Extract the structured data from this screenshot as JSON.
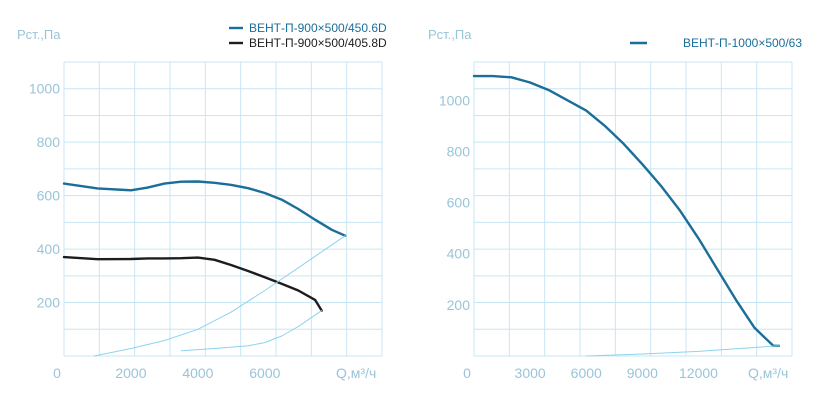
{
  "chart_data": [
    {
      "type": "line",
      "ylabel": "Pст.,Па",
      "xlabel": "Q,м³/ч",
      "xlim": [
        0,
        9500
      ],
      "ylim": [
        0,
        1100
      ],
      "x_ticks": [
        "0",
        "2000",
        "4000",
        "6000"
      ],
      "x_tick_values": [
        0,
        2000,
        4000,
        6000
      ],
      "y_ticks": [
        "200",
        "400",
        "600",
        "800",
        "1000"
      ],
      "y_tick_values": [
        200,
        400,
        600,
        800,
        1000
      ],
      "grid": true,
      "legend_position": "top-right",
      "series": [
        {
          "name": "ВЕНТ-П-900×500/450.6D",
          "color": "#1b6e98",
          "x": [
            0,
            1000,
            2000,
            2500,
            3000,
            3500,
            4000,
            4500,
            5000,
            5500,
            6000,
            6500,
            7000,
            7500,
            8000,
            8400
          ],
          "y": [
            645,
            627,
            620,
            630,
            645,
            652,
            653,
            648,
            640,
            628,
            610,
            585,
            550,
            510,
            472,
            450
          ]
        },
        {
          "name": "ВЕНТ-П-900×500/405.8D",
          "color": "#1d1d1d",
          "x": [
            0,
            1000,
            2000,
            2500,
            3000,
            3500,
            4000,
            4500,
            5000,
            5500,
            6000,
            6500,
            7000,
            7500,
            7700
          ],
          "y": [
            370,
            362,
            363,
            365,
            365,
            366,
            368,
            360,
            340,
            318,
            295,
            270,
            245,
            210,
            170
          ]
        },
        {
          "name": "",
          "color": "#8ed3ee",
          "x": [
            900,
            2000,
            3000,
            4000,
            5000,
            6000,
            7000,
            7700,
            8400
          ],
          "y": [
            0,
            28,
            58,
            100,
            165,
            245,
            330,
            390,
            450
          ]
        },
        {
          "name": "",
          "color": "#8ed3ee",
          "x": [
            3500,
            4500,
            5500,
            6000,
            6500,
            7000,
            7700
          ],
          "y": [
            20,
            28,
            38,
            50,
            75,
            110,
            170
          ]
        }
      ]
    },
    {
      "type": "line",
      "ylabel": "Pст.,Па",
      "xlabel": "Q,м³/ч",
      "xlim": [
        0,
        17000
      ],
      "ylim": [
        0,
        1150
      ],
      "x_ticks": [
        "0",
        "3000",
        "6000",
        "9000",
        "12000"
      ],
      "x_tick_values": [
        0,
        3000,
        6000,
        9000,
        12000
      ],
      "y_ticks": [
        "200",
        "400",
        "600",
        "800",
        "1000"
      ],
      "y_tick_values": [
        200,
        400,
        600,
        800,
        1000
      ],
      "grid": true,
      "legend_position": "top-right",
      "series": [
        {
          "name": "ВЕНТ-П-1000×500/63",
          "color": "#1b6e98",
          "x": [
            0,
            1000,
            2000,
            3000,
            4000,
            5000,
            6000,
            7000,
            8000,
            9000,
            10000,
            11000,
            12000,
            13000,
            14000,
            15000,
            16000,
            16300
          ],
          "y": [
            1095,
            1095,
            1090,
            1070,
            1040,
            1000,
            960,
            900,
            830,
            750,
            665,
            570,
            460,
            340,
            220,
            110,
            40,
            40
          ]
        },
        {
          "name": "",
          "color": "#8ed3ee",
          "x": [
            6000,
            9000,
            12000,
            14000,
            16300
          ],
          "y": [
            0,
            8,
            18,
            28,
            40
          ]
        }
      ]
    }
  ]
}
